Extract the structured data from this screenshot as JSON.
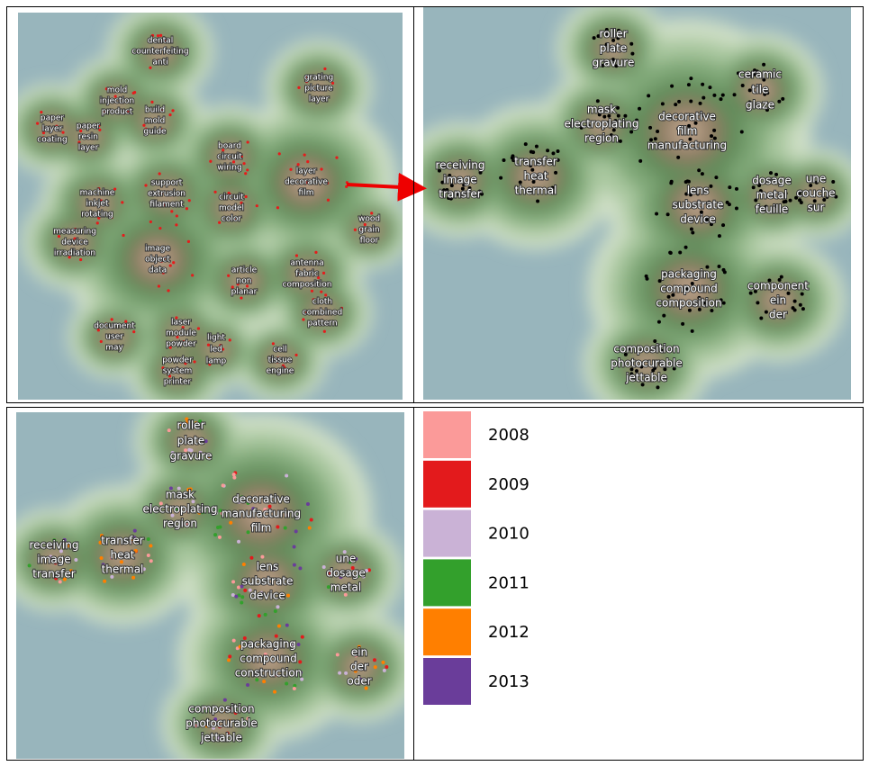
{
  "panels": [
    {
      "clusters": [
        [
          "dental",
          "counterfeiting",
          "anti"
        ],
        [
          "mold",
          "injection",
          "product"
        ],
        [
          "build",
          "mold",
          "guide"
        ],
        [
          "paper",
          "layer",
          "coating"
        ],
        [
          "paper",
          "resin",
          "layer"
        ],
        [
          "grating",
          "picture",
          "layer"
        ],
        [
          "board",
          "circuit",
          "wiring"
        ],
        [
          "layer",
          "decorative",
          "film"
        ],
        [
          "support",
          "extrusion",
          "filament"
        ],
        [
          "machine",
          "inkjet",
          "rotating"
        ],
        [
          "circuit",
          "model",
          "color"
        ],
        [
          "wood",
          "grain",
          "floor"
        ],
        [
          "measuring",
          "device",
          "irradiation"
        ],
        [
          "image",
          "object",
          "data"
        ],
        [
          "antenna",
          "fabric",
          "composition"
        ],
        [
          "article",
          "non",
          "planar"
        ],
        [
          "cloth",
          "combined",
          "pattern"
        ],
        [
          "document",
          "user",
          "may"
        ],
        [
          "laser",
          "module",
          "powder"
        ],
        [
          "powder",
          "system",
          "printer"
        ],
        [
          "light",
          "led",
          "lamp"
        ],
        [
          "cell",
          "tissue",
          "engine"
        ]
      ]
    },
    {
      "clusters": [
        [
          "roller",
          "plate",
          "gravure"
        ],
        [
          "mask",
          "electroplating",
          "region"
        ],
        [
          "ceramic",
          "tile",
          "glaze"
        ],
        [
          "decorative",
          "film",
          "manufacturing"
        ],
        [
          "receiving",
          "image",
          "transfer"
        ],
        [
          "transfer",
          "heat",
          "thermal"
        ],
        [
          "dosage",
          "metal",
          "feuille"
        ],
        [
          "une",
          "couche",
          "sur"
        ],
        [
          "lens",
          "substrate",
          "device"
        ],
        [
          "packaging",
          "compound",
          "composition"
        ],
        [
          "component",
          "ein",
          "der"
        ],
        [
          "composition",
          "photocurable",
          "jettable"
        ]
      ]
    },
    {
      "clusters": [
        [
          "roller",
          "plate",
          "gravure"
        ],
        [
          "mask",
          "electroplating",
          "region"
        ],
        [
          "decorative",
          "manufacturing",
          "film"
        ],
        [
          "receiving",
          "image",
          "transfer"
        ],
        [
          "transfer",
          "heat",
          "thermal"
        ],
        [
          "une",
          "dosage",
          "metal"
        ],
        [
          "lens",
          "substrate",
          "device"
        ],
        [
          "packaging",
          "compound",
          "construction"
        ],
        [
          "ein",
          "der",
          "oder"
        ],
        [
          "composition",
          "photocurable",
          "jettable"
        ]
      ]
    }
  ],
  "legend": [
    {
      "label": "2008",
      "color": "#fb9a99"
    },
    {
      "label": "2009",
      "color": "#e31a1c"
    },
    {
      "label": "2010",
      "color": "#cab2d6"
    },
    {
      "label": "2011",
      "color": "#33a02c"
    },
    {
      "label": "2012",
      "color": "#ff7f00"
    },
    {
      "label": "2013",
      "color": "#6a3d9a"
    }
  ]
}
